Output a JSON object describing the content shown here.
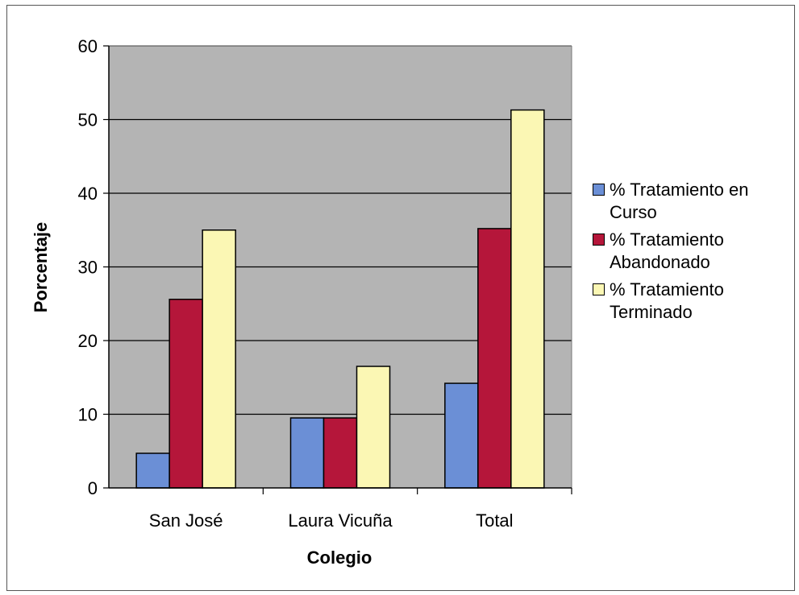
{
  "chart_data": {
    "type": "bar",
    "title": "",
    "xlabel": "Colegio",
    "ylabel": "Porcentaje",
    "categories": [
      "San José",
      "Laura Vicuña",
      "Total"
    ],
    "ylim": [
      0,
      60
    ],
    "yticks": [
      0,
      10,
      20,
      30,
      40,
      50,
      60
    ],
    "grid": true,
    "legend_position": "right",
    "series": [
      {
        "name": "% Tratamiento en Curso",
        "values": [
          4.7,
          9.5,
          14.2
        ],
        "color": "#6b8fd6"
      },
      {
        "name": "% Tratamiento Abandonado",
        "values": [
          25.6,
          9.5,
          35.2
        ],
        "color": "#b5163a"
      },
      {
        "name": "% Tratamiento Terminado",
        "values": [
          35.0,
          16.5,
          51.3
        ],
        "color": "#fbf7b4"
      }
    ],
    "plot_background": "#b4b4b4"
  }
}
